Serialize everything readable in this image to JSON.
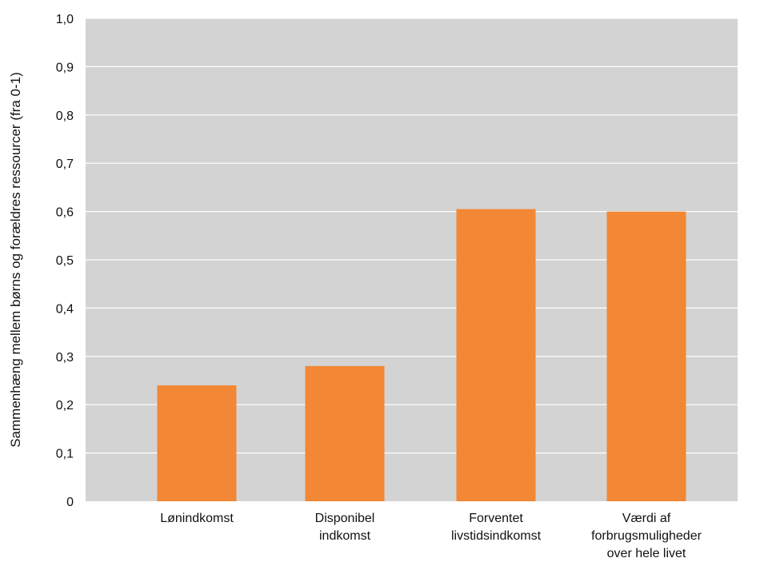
{
  "chart_data": {
    "type": "bar",
    "title": "",
    "xlabel": "",
    "ylabel": "Sammenhæng mellem børns og forældres ressourcer (fra 0-1)",
    "ylim": [
      0,
      1.0
    ],
    "yticks": [
      "0",
      "0,1",
      "0,2",
      "0,3",
      "0,4",
      "0,5",
      "0,6",
      "0,7",
      "0,8",
      "0,9",
      "1,0"
    ],
    "grid": true,
    "categories": [
      [
        "Lønindkomst"
      ],
      [
        "Disponibel",
        "indkomst"
      ],
      [
        "Forventet",
        "livstidsindkomst"
      ],
      [
        "Værdi af",
        "forbrugsmuligheder",
        "over hele livet"
      ]
    ],
    "values": [
      0.24,
      0.28,
      0.605,
      0.6
    ],
    "colors": {
      "bar": "#F28735",
      "plot_background": "#D3D3D3",
      "grid": "#FFFFFF"
    }
  }
}
